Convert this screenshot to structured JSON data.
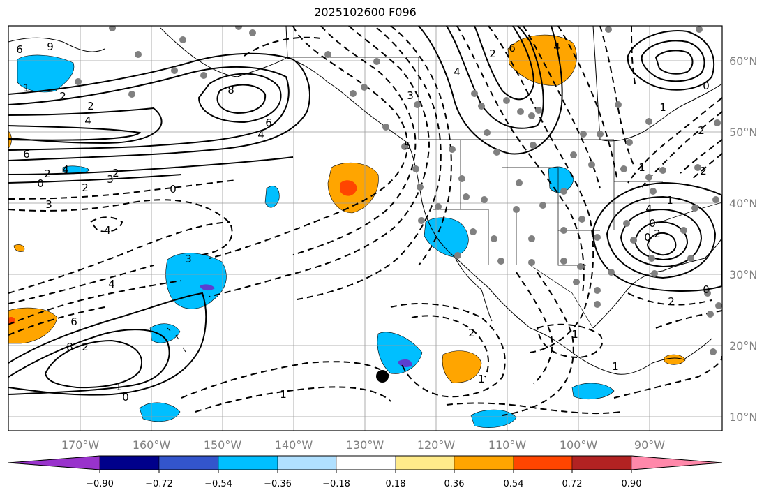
{
  "title": "2025102600 F096",
  "lat_labels": [
    "60°N",
    "50°N",
    "40°N",
    "30°N",
    "20°N",
    "10°N"
  ],
  "lon_labels": [
    "170°W",
    "160°W",
    "150°W",
    "140°W",
    "130°W",
    "120°W",
    "110°W",
    "100°W",
    "90°W"
  ],
  "colorbar": {
    "tick_labels": [
      "−0.90",
      "−0.72",
      "−0.54",
      "−0.36",
      "−0.18",
      "0.18",
      "0.36",
      "0.54",
      "0.72",
      "0.90"
    ],
    "colors": [
      "#9933cc",
      "#00008b",
      "#3355cc",
      "#00bfff",
      "#b0e0ff",
      "#ffffff",
      "#ffeb8a",
      "#ffa500",
      "#ff4500",
      "#b22222",
      "#ff88aa"
    ]
  },
  "contour_labels": [
    "6",
    "9",
    "1",
    "2",
    "2",
    "4",
    "6",
    "2",
    "0",
    "3",
    "4",
    "8",
    "6",
    "4",
    "2",
    "2",
    "0",
    "3",
    "4",
    "6",
    "4",
    "4",
    "2",
    "3",
    "5",
    "1",
    "0",
    "4",
    "1",
    "2",
    "1",
    "0",
    "2",
    "0",
    "3",
    "4",
    "6",
    "8",
    "2",
    "1",
    "0",
    "2",
    "1",
    "1",
    "2",
    "1",
    "2",
    "0",
    "1"
  ],
  "map_extent": {
    "lon_min": -180,
    "lon_max": -80,
    "lat_min": 8,
    "lat_max": 65
  },
  "point_marker": {
    "label": ""
  }
}
